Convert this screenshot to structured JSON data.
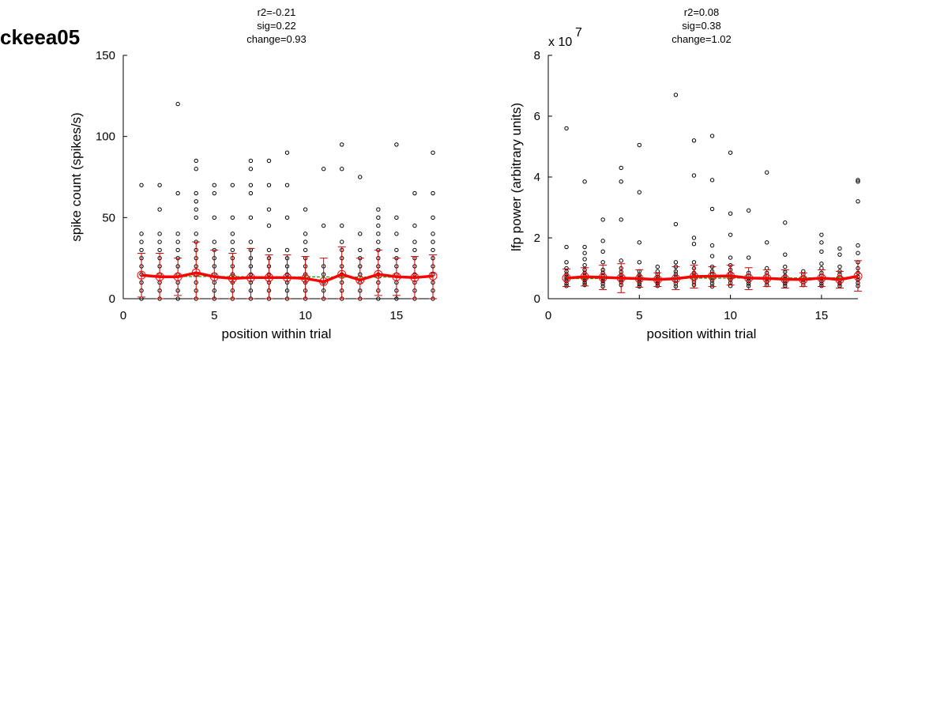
{
  "figure_label": "ckeea05",
  "colors": {
    "mean_line": "#ff0000",
    "error_bar": "#cc0000",
    "fit_line": "#00a000",
    "points": "#000000"
  },
  "chart_data": [
    {
      "type": "scatter",
      "title_lines": [
        "r2=-0.21",
        "sig=0.22",
        "change=0.93"
      ],
      "xlabel": "position within trial",
      "ylabel": "spike count (spikes/s)",
      "xlim": [
        0,
        17
      ],
      "ylim": [
        0,
        150
      ],
      "xticks": [
        0,
        5,
        10,
        15
      ],
      "yticks": [
        0,
        50,
        100,
        150
      ],
      "tick_labels_x": [
        "0",
        "5",
        "10",
        "15"
      ],
      "tick_labels_y": [
        "0",
        "50",
        "100",
        "150"
      ],
      "exponent_label": "",
      "exponent_power": "",
      "grid": false,
      "means": [
        14.5,
        13.5,
        13.5,
        16.0,
        13.5,
        12.5,
        13.0,
        13.0,
        13.0,
        12.5,
        10.5,
        15.0,
        11.5,
        15.0,
        13.5,
        13.0,
        14.0
      ],
      "error_low": [
        1.0,
        0.0,
        2.0,
        0.0,
        0.0,
        0.0,
        0.0,
        0.0,
        0.0,
        0.0,
        0.0,
        0.0,
        0.0,
        2.0,
        2.0,
        0.0,
        0.0
      ],
      "error_high": [
        28.0,
        28.0,
        25.0,
        35.0,
        30.0,
        28.0,
        31.0,
        27.0,
        27.0,
        26.0,
        25.0,
        32.0,
        25.0,
        30.0,
        25.0,
        26.0,
        27.0
      ],
      "fit": [
        13.8,
        13.2
      ],
      "points": [
        [
          0,
          5,
          10,
          15,
          20,
          25,
          30,
          35,
          40,
          70
        ],
        [
          0,
          5,
          10,
          15,
          20,
          25,
          30,
          35,
          40,
          55,
          70
        ],
        [
          0,
          5,
          10,
          15,
          20,
          25,
          30,
          35,
          40,
          65,
          120
        ],
        [
          0,
          5,
          10,
          15,
          20,
          25,
          30,
          35,
          40,
          50,
          55,
          60,
          65,
          80,
          85
        ],
        [
          0,
          5,
          10,
          15,
          20,
          25,
          30,
          35,
          50,
          65,
          70
        ],
        [
          0,
          5,
          10,
          15,
          20,
          25,
          30,
          35,
          40,
          50,
          70
        ],
        [
          0,
          5,
          10,
          15,
          20,
          25,
          30,
          35,
          50,
          65,
          70,
          80,
          85
        ],
        [
          0,
          5,
          10,
          15,
          20,
          25,
          30,
          45,
          55,
          70,
          85
        ],
        [
          0,
          5,
          10,
          15,
          20,
          25,
          30,
          50,
          70,
          90
        ],
        [
          0,
          5,
          10,
          15,
          20,
          25,
          30,
          35,
          40,
          55
        ],
        [
          0,
          5,
          10,
          15,
          20,
          45,
          80
        ],
        [
          0,
          5,
          10,
          15,
          20,
          25,
          30,
          35,
          45,
          80,
          95
        ],
        [
          0,
          5,
          10,
          15,
          20,
          25,
          30,
          40,
          75
        ],
        [
          0,
          5,
          10,
          15,
          20,
          25,
          30,
          35,
          40,
          45,
          50,
          55
        ],
        [
          0,
          5,
          10,
          15,
          20,
          25,
          30,
          40,
          50,
          95
        ],
        [
          0,
          5,
          10,
          15,
          20,
          25,
          30,
          35,
          45,
          65
        ],
        [
          0,
          5,
          10,
          15,
          20,
          25,
          30,
          35,
          40,
          50,
          65,
          90
        ]
      ]
    },
    {
      "type": "scatter",
      "title_lines": [
        "r2=0.08",
        "sig=0.38",
        "change=1.02"
      ],
      "xlabel": "position within trial",
      "ylabel": "lfp power (arbitrary units)",
      "xlim": [
        0,
        17
      ],
      "ylim": [
        0,
        8
      ],
      "xticks": [
        0,
        5,
        10,
        15
      ],
      "yticks": [
        0,
        2,
        4,
        6,
        8
      ],
      "tick_labels_x": [
        "0",
        "5",
        "10",
        "15"
      ],
      "tick_labels_y": [
        "0",
        "2",
        "4",
        "6",
        "8"
      ],
      "exponent_label": "x 10",
      "exponent_power": "7",
      "grid": false,
      "means": [
        0.68,
        0.72,
        0.7,
        0.68,
        0.66,
        0.63,
        0.66,
        0.73,
        0.74,
        0.75,
        0.68,
        0.67,
        0.64,
        0.63,
        0.68,
        0.63,
        0.74
      ],
      "error_low": [
        0.4,
        0.42,
        0.3,
        0.2,
        0.38,
        0.4,
        0.3,
        0.35,
        0.4,
        0.45,
        0.3,
        0.4,
        0.35,
        0.4,
        0.4,
        0.35,
        0.25
      ],
      "error_high": [
        0.98,
        1.02,
        1.1,
        1.15,
        0.95,
        0.85,
        1.05,
        1.1,
        1.05,
        1.1,
        1.02,
        0.95,
        0.95,
        0.85,
        0.95,
        0.9,
        1.25
      ],
      "fit": [
        0.66,
        0.69
      ],
      "points": [
        [
          0.42,
          0.5,
          0.58,
          0.65,
          0.72,
          0.8,
          0.9,
          1.0,
          1.2,
          1.7,
          5.6
        ],
        [
          0.45,
          0.52,
          0.6,
          0.68,
          0.75,
          0.85,
          0.95,
          1.1,
          1.3,
          1.5,
          1.7,
          3.85
        ],
        [
          0.4,
          0.5,
          0.58,
          0.66,
          0.75,
          0.85,
          0.95,
          1.2,
          1.55,
          1.9,
          2.6
        ],
        [
          0.45,
          0.55,
          0.62,
          0.7,
          0.78,
          0.88,
          1.0,
          1.25,
          2.6,
          3.85,
          4.3
        ],
        [
          0.4,
          0.48,
          0.55,
          0.62,
          0.7,
          0.78,
          0.9,
          1.2,
          1.85,
          3.5,
          5.05
        ],
        [
          0.42,
          0.5,
          0.58,
          0.65,
          0.72,
          0.8,
          0.9,
          1.05
        ],
        [
          0.4,
          0.5,
          0.6,
          0.7,
          0.8,
          0.9,
          1.05,
          1.2,
          2.45,
          6.7
        ],
        [
          0.45,
          0.55,
          0.65,
          0.75,
          0.85,
          1.0,
          1.2,
          1.8,
          2.0,
          4.05,
          5.2
        ],
        [
          0.4,
          0.5,
          0.6,
          0.7,
          0.8,
          0.9,
          1.05,
          1.4,
          1.75,
          2.95,
          3.9,
          5.35
        ],
        [
          0.42,
          0.52,
          0.62,
          0.72,
          0.82,
          0.95,
          1.1,
          1.35,
          2.1,
          2.8,
          4.8
        ],
        [
          0.42,
          0.5,
          0.58,
          0.66,
          0.75,
          0.85,
          1.35,
          2.9
        ],
        [
          0.45,
          0.55,
          0.65,
          0.75,
          0.85,
          1.0,
          1.85,
          4.15
        ],
        [
          0.42,
          0.5,
          0.58,
          0.66,
          0.75,
          0.88,
          1.05,
          1.45,
          2.5
        ],
        [
          0.45,
          0.55,
          0.62,
          0.7,
          0.8,
          0.9
        ],
        [
          0.42,
          0.5,
          0.58,
          0.66,
          0.75,
          0.85,
          1.0,
          1.15,
          1.55,
          1.85,
          2.1
        ],
        [
          0.42,
          0.5,
          0.6,
          0.7,
          0.8,
          0.9,
          1.05,
          1.45,
          1.65
        ],
        [
          0.42,
          0.52,
          0.62,
          0.72,
          0.85,
          1.0,
          1.2,
          1.5,
          1.75,
          3.2,
          3.85,
          3.9
        ]
      ]
    }
  ]
}
